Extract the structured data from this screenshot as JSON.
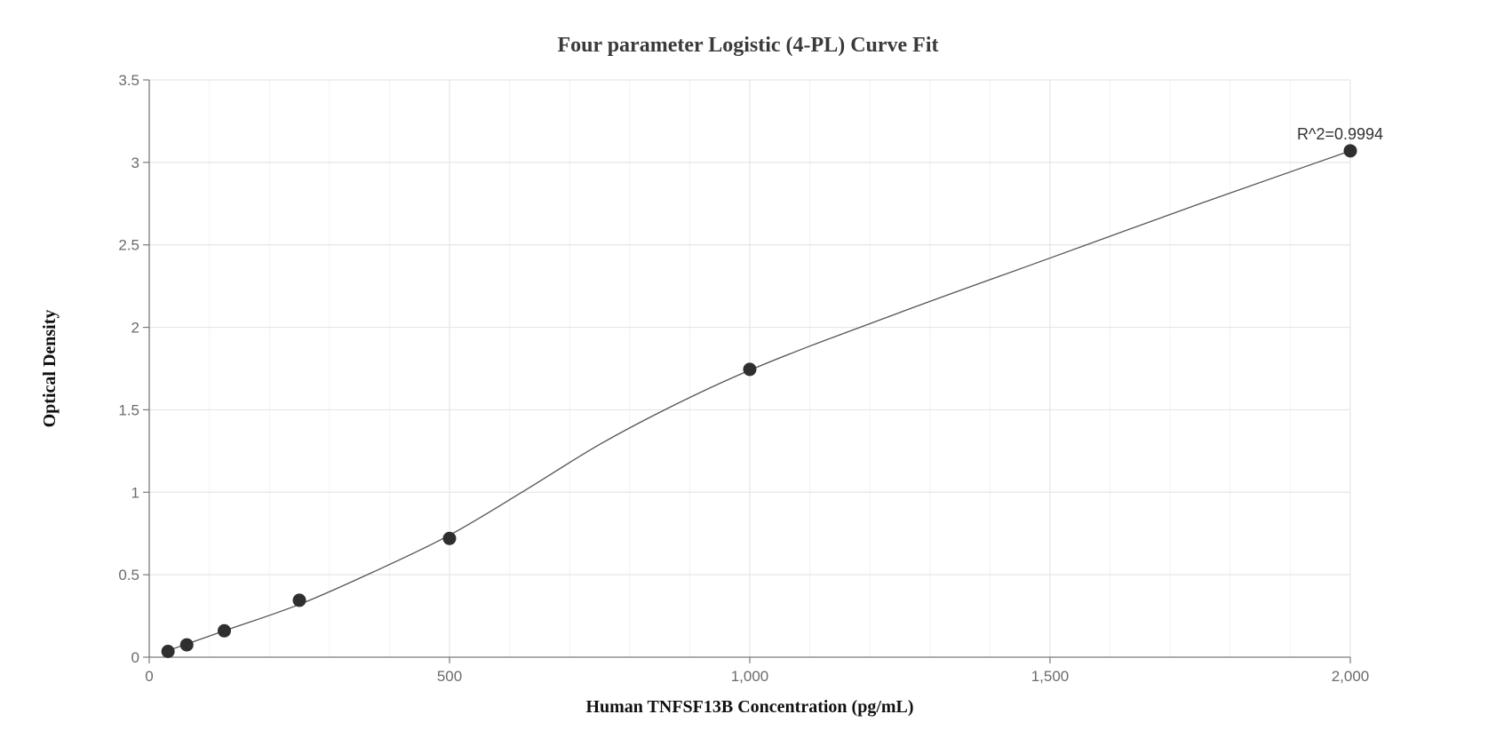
{
  "chart_data": {
    "type": "scatter",
    "title": "Four parameter Logistic (4-PL) Curve Fit",
    "xlabel": "Human TNFSF13B Concentration (pg/mL)",
    "ylabel": "Optical Density",
    "xlim": [
      0,
      2000
    ],
    "ylim": [
      0,
      3.5
    ],
    "x_ticks": [
      0,
      500,
      1000,
      1500,
      2000
    ],
    "x_tick_labels": [
      "0",
      "500",
      "1,000",
      "1,500",
      "2,000"
    ],
    "y_ticks": [
      0,
      0.5,
      1,
      1.5,
      2,
      2.5,
      3,
      3.5
    ],
    "y_tick_labels": [
      "0",
      "0.5",
      "1",
      "1.5",
      "2",
      "2.5",
      "3",
      "3.5"
    ],
    "grid": true,
    "legend": "none",
    "series": [
      {
        "kind": "points",
        "x": [
          31.25,
          62.5,
          125,
          250,
          500,
          1000,
          2000
        ],
        "y": [
          0.035,
          0.075,
          0.16,
          0.345,
          0.72,
          1.745,
          3.07
        ],
        "color": "#2f2f2f"
      },
      {
        "kind": "fit-curve",
        "x": [
          31.25,
          62.5,
          125,
          250,
          375,
          500,
          625,
          750,
          875,
          1000,
          1250,
          1500,
          1750,
          2000
        ],
        "y": [
          0.04,
          0.08,
          0.16,
          0.32,
          0.52,
          0.74,
          1.01,
          1.29,
          1.53,
          1.74,
          2.09,
          2.42,
          2.75,
          3.07
        ],
        "color": "#555555"
      }
    ],
    "annotations": [
      {
        "text": "R^2=0.9994",
        "x": 2000,
        "y": 3.07
      }
    ]
  }
}
